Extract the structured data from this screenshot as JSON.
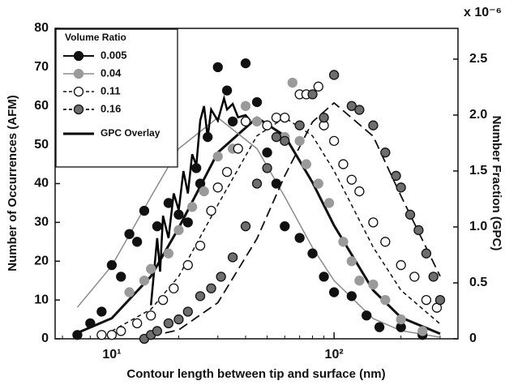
{
  "chart_data": {
    "type": "scatter",
    "x_label": "Contour length between tip and surface (nm)",
    "y_label": "Number of Occurrences (AFM)",
    "y2_label": "Number Fraction (GPC)",
    "y2_exponent": "x 10⁻⁶",
    "legend_title": "Volume Ratio",
    "legend": "upper left",
    "log_x": true,
    "xlim": [
      5.56,
      361
    ],
    "xticks": [
      {
        "value": 10,
        "label": "10¹"
      },
      {
        "value": 100,
        "label": "10²"
      }
    ],
    "xminorticks": [
      6,
      7,
      8,
      9,
      20,
      30,
      40,
      50,
      60,
      70,
      80,
      90,
      200,
      300
    ],
    "ylim": [
      0,
      80
    ],
    "yticks": [
      0,
      10,
      20,
      30,
      40,
      50,
      60,
      70,
      80
    ],
    "y2lim": [
      0,
      2.775
    ],
    "y2ticks": [
      0,
      0.5,
      {
        "value": 1,
        "label": "1.0"
      },
      1.5,
      {
        "value": 2,
        "label": "2.0"
      },
      2.5
    ],
    "series": [
      {
        "name": "0.005",
        "color": "#111111",
        "edge": "#111111",
        "x": [
          7,
          8,
          9,
          10,
          11,
          12,
          13,
          14,
          16,
          18,
          20,
          22,
          24,
          25,
          27,
          30,
          33,
          35,
          40,
          45,
          50,
          55,
          60,
          70,
          80,
          90,
          100,
          120,
          140,
          160,
          200,
          250
        ],
        "values": [
          1,
          4,
          7,
          19,
          16,
          27,
          25,
          33,
          29,
          35,
          32,
          30,
          44,
          40,
          52,
          70,
          64,
          56,
          71,
          61,
          48,
          40,
          29,
          26,
          22,
          16,
          12,
          11,
          6,
          3,
          3,
          1
        ],
        "fit": {
          "color": "#111111",
          "width": 3,
          "dash": "none",
          "x": [
            7,
            10,
            15,
            20,
            30,
            45,
            60,
            80,
            100,
            150,
            200,
            300
          ],
          "values": [
            1.5,
            5.3,
            16.1,
            28.6,
            48,
            57,
            52.3,
            40.3,
            29.2,
            12.5,
            5.5,
            1.3
          ]
        }
      },
      {
        "name": "0.04",
        "color": "#9a9a9a",
        "edge": "#9a9a9a",
        "x": [
          12,
          14,
          15,
          18,
          20,
          23,
          26,
          30,
          35,
          40,
          45,
          50,
          60,
          65,
          70,
          75,
          85,
          95,
          110,
          120,
          130,
          150,
          170,
          200,
          250
        ],
        "values": [
          12,
          15,
          18,
          22,
          28,
          34,
          38,
          47,
          49,
          60,
          56,
          55,
          52,
          66,
          51,
          45,
          40,
          35,
          25,
          20,
          15,
          14,
          10,
          5,
          2
        ],
        "fit": {
          "color": "#8a8a8a",
          "width": 1.5,
          "dash": "none",
          "x": [
            7,
            10,
            15,
            20,
            30,
            45,
            60,
            80,
            100,
            150,
            200,
            300
          ],
          "values": [
            8.1,
            18.8,
            36.6,
            49,
            57,
            49,
            36.6,
            23.5,
            15,
            5.2,
            2.1,
            0.4
          ]
        }
      },
      {
        "name": "0.11",
        "color": "#ffffff",
        "edge": "#111111",
        "x": [
          9,
          10,
          11,
          13,
          15,
          17,
          19,
          22,
          25,
          28,
          30,
          33,
          37,
          40,
          50,
          55,
          60,
          70,
          75,
          85,
          90,
          100,
          110,
          120,
          130,
          150,
          170,
          200,
          230,
          260,
          290
        ],
        "values": [
          1,
          1,
          2,
          4,
          6,
          10,
          13,
          19,
          24,
          33,
          39,
          43,
          49,
          56,
          55,
          57,
          57,
          63,
          63,
          65,
          55,
          51,
          45,
          41,
          38,
          30,
          25,
          19,
          16,
          10,
          8
        ],
        "fit": {
          "color": "#111111",
          "width": 1.5,
          "dash": "5 4",
          "x": [
            10,
            15,
            20,
            30,
            45,
            60,
            80,
            100,
            150,
            200,
            300
          ],
          "values": [
            2,
            7.6,
            16.1,
            34.5,
            52.3,
            57,
            52.3,
            43.3,
            23.6,
            12.5,
            3.8
          ]
        }
      },
      {
        "name": "0.16",
        "color": "#6e6e6e",
        "edge": "#111111",
        "x": [
          14,
          15,
          16,
          18,
          20,
          22,
          25,
          28,
          31,
          35,
          40,
          45,
          50,
          55,
          60,
          70,
          80,
          90,
          100,
          120,
          130,
          150,
          170,
          190,
          200,
          220,
          240,
          260,
          280,
          300
        ],
        "values": [
          0,
          1,
          2,
          4,
          5,
          7,
          11,
          13,
          16,
          21,
          29,
          40,
          44,
          52,
          51,
          55,
          63,
          57,
          68,
          60,
          59,
          55,
          48,
          42,
          39,
          32,
          28,
          22,
          16,
          10
        ],
        "fit": {
          "color": "#111111",
          "width": 1.8,
          "dash": "12 6",
          "x": [
            15,
            20,
            30,
            45,
            60,
            80,
            100,
            150,
            200,
            300
          ],
          "values": [
            0.7,
            2.3,
            9.3,
            25.8,
            42,
            55.9,
            60.8,
            52.2,
            36.8,
            16.1
          ]
        }
      }
    ],
    "overlay": {
      "name": "GPC Overlay",
      "color": "#000000",
      "axis": "y2",
      "x": [
        15,
        16,
        16.5,
        17,
        18,
        19,
        20,
        21,
        22,
        23,
        24,
        25,
        26,
        27,
        28,
        30,
        32,
        33,
        35,
        37,
        40,
        42
      ],
      "values": [
        0.3,
        0.9,
        0.6,
        1.1,
        0.9,
        1.3,
        1.15,
        1.5,
        1.3,
        1.65,
        1.55,
        1.95,
        2.08,
        1.8,
        2.05,
        1.95,
        2.15,
        2.05,
        2.1,
        1.98,
        2.0,
        1.95
      ]
    }
  }
}
